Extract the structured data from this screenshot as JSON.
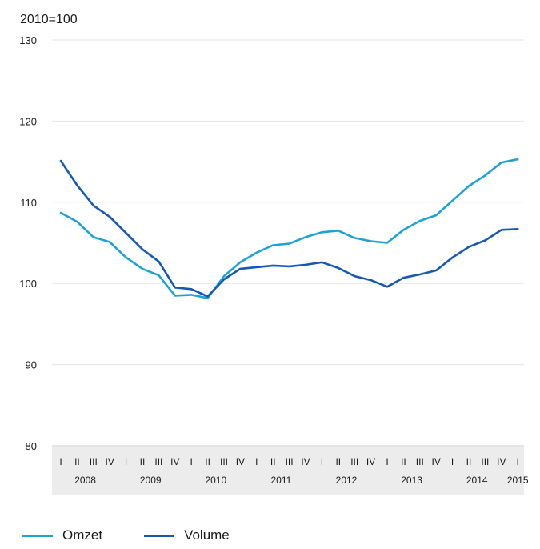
{
  "chart_data": {
    "type": "line",
    "ylabel": "2010=100",
    "ylim": [
      80,
      130
    ],
    "yticks": [
      80,
      90,
      100,
      110,
      120,
      130
    ],
    "quarter_labels": [
      "I",
      "II",
      "III",
      "IV",
      "I",
      "II",
      "III",
      "IV",
      "I",
      "II",
      "III",
      "IV",
      "I",
      "II",
      "III",
      "IV",
      "I",
      "II",
      "III",
      "IV",
      "I",
      "II",
      "III",
      "IV",
      "I",
      "II",
      "III",
      "IV",
      "I"
    ],
    "year_labels": [
      {
        "label": "2008",
        "quarter_index": 1.5
      },
      {
        "label": "2009",
        "quarter_index": 5.5
      },
      {
        "label": "2010",
        "quarter_index": 9.5
      },
      {
        "label": "2011",
        "quarter_index": 13.5
      },
      {
        "label": "2012",
        "quarter_index": 17.5
      },
      {
        "label": "2013",
        "quarter_index": 21.5
      },
      {
        "label": "2014",
        "quarter_index": 25.5
      },
      {
        "label": "2015",
        "quarter_index": 28
      }
    ],
    "grid": true,
    "legend_position": "bottom-left",
    "series": [
      {
        "name": "Omzet",
        "color": "#1ba3d6",
        "values": [
          108.7,
          107.6,
          105.7,
          105.1,
          103.2,
          101.8,
          101.0,
          98.5,
          98.6,
          98.2,
          100.9,
          102.6,
          103.8,
          104.7,
          104.9,
          105.7,
          106.3,
          106.5,
          105.6,
          105.2,
          105.0,
          106.6,
          107.7,
          108.4,
          110.2,
          112.0,
          113.3,
          114.9,
          115.3
        ]
      },
      {
        "name": "Volume",
        "color": "#1659b4",
        "values": [
          115.1,
          112.1,
          109.6,
          108.2,
          106.2,
          104.2,
          102.7,
          99.5,
          99.3,
          98.4,
          100.5,
          101.8,
          102.0,
          102.2,
          102.1,
          102.3,
          102.6,
          101.9,
          100.9,
          100.4,
          99.6,
          100.7,
          101.1,
          101.6,
          103.2,
          104.5,
          105.3,
          106.6,
          106.7
        ]
      }
    ]
  }
}
